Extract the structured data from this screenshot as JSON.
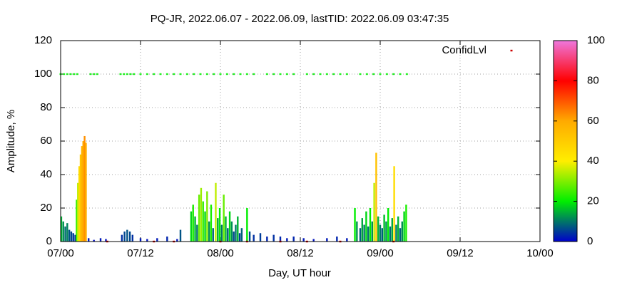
{
  "chart_data": {
    "type": "bar",
    "title": "PQ-JR, 2022.06.07 - 2022.06.09, lastTID: 2022.06.09 03:47:35",
    "xlabel": "Day, UT hour",
    "ylabel": "Amplitude, %",
    "xlim": [
      0,
      72
    ],
    "xticks": [
      {
        "value": 0,
        "label": "07/00"
      },
      {
        "value": 12,
        "label": "07/12"
      },
      {
        "value": 24,
        "label": "08/00"
      },
      {
        "value": 36,
        "label": "08/12"
      },
      {
        "value": 48,
        "label": "09/00"
      },
      {
        "value": 60,
        "label": "09/12"
      },
      {
        "value": 72,
        "label": "10/00"
      }
    ],
    "ylim": [
      0,
      120
    ],
    "yticks": [
      0,
      20,
      40,
      60,
      80,
      100,
      120
    ],
    "grid": true,
    "legend": "top right",
    "cblim": [
      0,
      100
    ],
    "cbticks": [
      0,
      20,
      40,
      60,
      80,
      100
    ],
    "palette": [
      "#0000cc",
      "#00ee00",
      "#ffee00",
      "#ffaa00",
      "#ff0000",
      "#ee77dd"
    ],
    "bars": {
      "x": [
        0.1,
        0.4,
        0.7,
        1.0,
        1.3,
        1.6,
        1.9,
        2.2,
        2.4,
        2.6,
        2.8,
        3.0,
        3.2,
        3.4,
        3.6,
        3.8,
        4.2,
        5.0,
        6.0,
        6.8,
        9.2,
        9.6,
        10.0,
        10.4,
        10.8,
        12.0,
        13.0,
        14.5,
        16.0,
        17.5,
        18.0,
        19.6,
        19.9,
        20.2,
        20.5,
        20.8,
        21.1,
        21.4,
        21.7,
        22.0,
        22.3,
        22.6,
        22.9,
        23.3,
        23.6,
        23.9,
        24.2,
        24.5,
        24.8,
        25.1,
        25.4,
        25.7,
        26.0,
        26.3,
        26.6,
        26.9,
        27.2,
        28.0,
        28.4,
        29.0,
        30.0,
        31.0,
        32.0,
        33.0,
        34.0,
        35.0,
        36.5,
        38.0,
        40.0,
        41.5,
        43.0,
        44.2,
        44.5,
        45.0,
        45.3,
        45.6,
        45.9,
        46.2,
        46.5,
        46.8,
        47.1,
        47.4,
        47.7,
        48.0,
        48.3,
        48.6,
        48.9,
        49.2,
        49.5,
        49.8,
        50.1,
        50.4,
        50.7,
        51.0,
        51.3,
        51.6,
        51.9
      ],
      "values": [
        15,
        12,
        9,
        11,
        7,
        6,
        5,
        4,
        25,
        35,
        45,
        52,
        57,
        60,
        63,
        59,
        2,
        1,
        2,
        1.5,
        4,
        6,
        7,
        6,
        4,
        2,
        1.5,
        2,
        3,
        1.5,
        7,
        18,
        22,
        15,
        10,
        28,
        32,
        24,
        18,
        30,
        12,
        22,
        8,
        35,
        14,
        20,
        10,
        28,
        15,
        8,
        18,
        12,
        6,
        10,
        15,
        5,
        8,
        20,
        6,
        4,
        5,
        3,
        4,
        3,
        2,
        3,
        2,
        1.5,
        2,
        3,
        2,
        20,
        12,
        8,
        14,
        10,
        18,
        9,
        20,
        12,
        35,
        53,
        15,
        10,
        8,
        16,
        12,
        20,
        9,
        14,
        45,
        10,
        15,
        8,
        12,
        18,
        22
      ]
    },
    "points": {
      "name": "ConfidLvl",
      "color": "#22ee22",
      "low_color": "#cc0000",
      "x": [
        0,
        0.5,
        1,
        1.5,
        2,
        2.5,
        4.5,
        5,
        5.5,
        9,
        9.5,
        10,
        10.5,
        11,
        12,
        13,
        14,
        15,
        16,
        17,
        18,
        19,
        20,
        21,
        22,
        23,
        24,
        25,
        26,
        27,
        28,
        29,
        31,
        32,
        33,
        34,
        35,
        37,
        38,
        39,
        40,
        41,
        42,
        43,
        45,
        46,
        47,
        48,
        49,
        50,
        51,
        52,
        7,
        14,
        17,
        24,
        28,
        33,
        37,
        42,
        50
      ],
      "values": [
        100,
        100,
        100,
        100,
        100,
        100,
        100,
        100,
        100,
        100,
        100,
        100,
        100,
        100,
        100,
        100,
        100,
        100,
        100,
        100,
        100,
        100,
        100,
        100,
        100,
        100,
        100,
        100,
        100,
        100,
        100,
        100,
        100,
        100,
        100,
        100,
        100,
        100,
        100,
        100,
        100,
        100,
        100,
        100,
        100,
        100,
        100,
        100,
        100,
        100,
        100,
        100,
        0,
        0,
        0,
        0,
        0,
        0,
        0,
        0,
        0
      ]
    }
  }
}
